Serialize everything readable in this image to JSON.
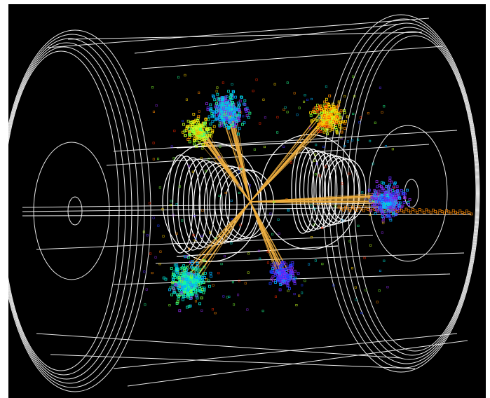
{
  "image": {
    "subject": "particle-collision-event-display",
    "background_color": "#000000",
    "frame_color": "#ffffff",
    "detector_line_color": "#e8e8e8",
    "track_color": "#f0b040",
    "hit_palette": [
      "#1a3cff",
      "#5a2dff",
      "#8a2be2",
      "#00b0ff",
      "#00e0d0",
      "#20ff90",
      "#7dff30",
      "#c8ff20",
      "#ffd400",
      "#ff8a00",
      "#ff2a00"
    ]
  }
}
